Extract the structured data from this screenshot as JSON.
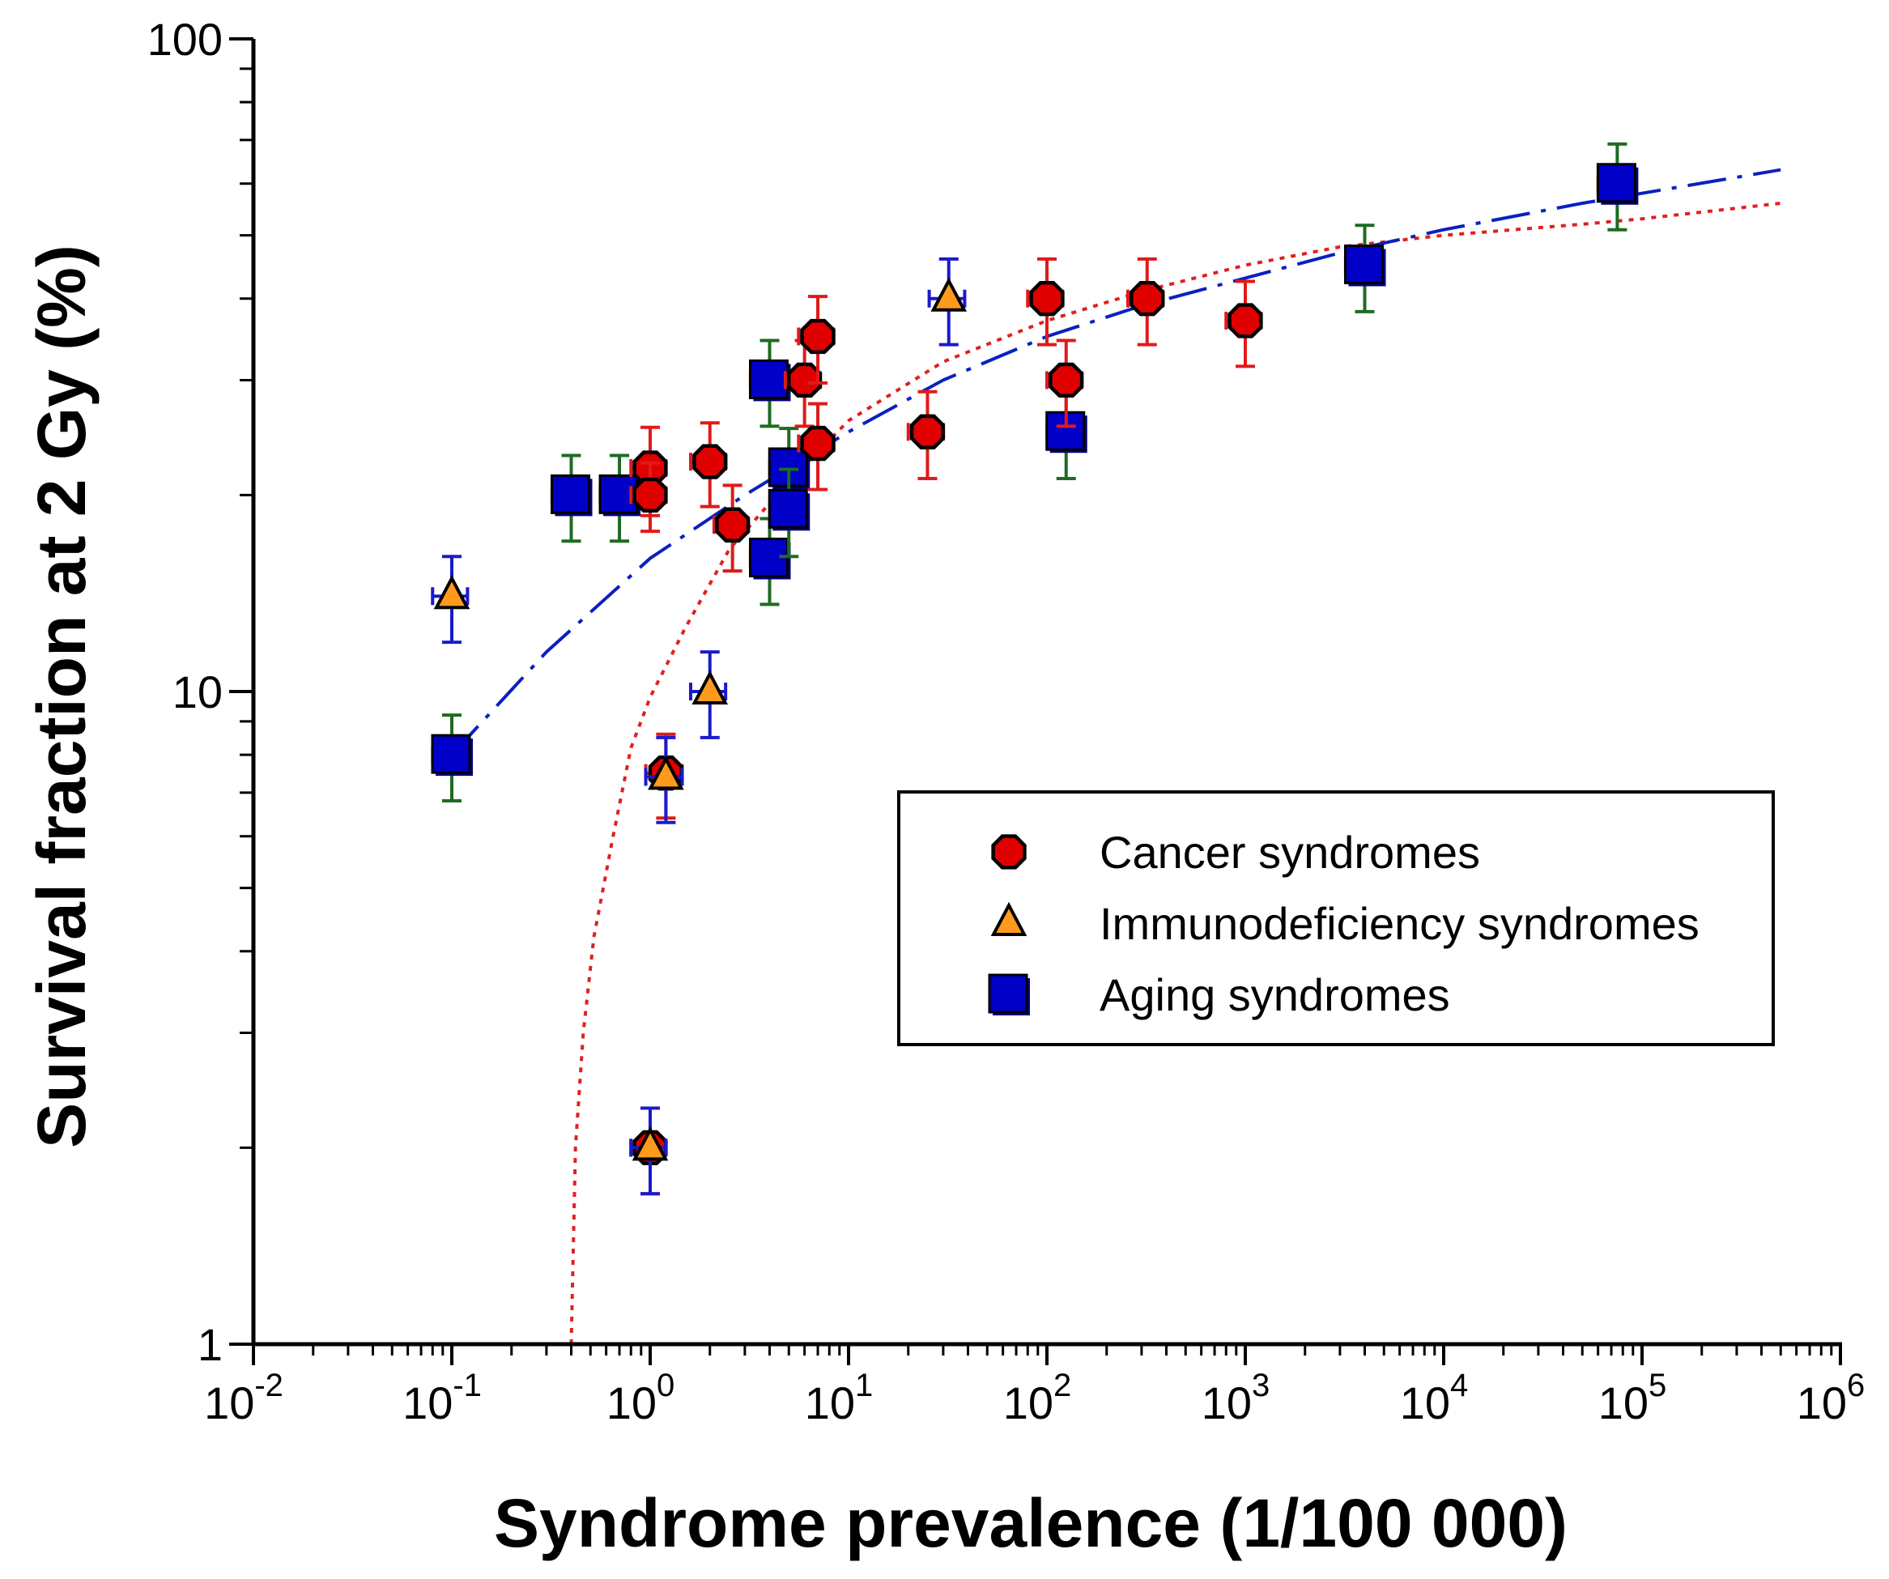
{
  "chart_data": {
    "type": "scatter",
    "title": "",
    "xlabel": "Syndrome prevalence (1/100 000)",
    "ylabel": "Survival fraction at 2 Gy (%)",
    "xscale": "log",
    "yscale": "log",
    "xlim": [
      0.01,
      1000000
    ],
    "ylim": [
      1,
      100
    ],
    "x_ticks": [
      {
        "value": 0.01,
        "base": "10",
        "exp": "-2"
      },
      {
        "value": 0.1,
        "base": "10",
        "exp": "-1"
      },
      {
        "value": 1,
        "base": "10",
        "exp": "0"
      },
      {
        "value": 10,
        "base": "10",
        "exp": "1"
      },
      {
        "value": 100,
        "base": "10",
        "exp": "2"
      },
      {
        "value": 1000,
        "base": "10",
        "exp": "3"
      },
      {
        "value": 10000,
        "base": "10",
        "exp": "4"
      },
      {
        "value": 100000,
        "base": "10",
        "exp": "5"
      },
      {
        "value": 1000000,
        "base": "10",
        "exp": "6"
      }
    ],
    "y_ticks": [
      {
        "value": 1,
        "label": "1"
      },
      {
        "value": 10,
        "label": "10"
      },
      {
        "value": 100,
        "label": "100"
      }
    ],
    "legend_position": "middle-right",
    "colors": {
      "cancer_fill": "#e00000",
      "immuno_fill": "#ff9a1f",
      "aging_fill": "#0000c8",
      "red_err": "#e01a1a",
      "green_err": "#1e6b22",
      "blue_err": "#1a1acc",
      "orange_err": "#ff8c1a",
      "red_fit": "#e02020",
      "blue_fit": "#0a20c0"
    },
    "series": [
      {
        "name": "Cancer syndromes",
        "marker": "octagon",
        "points": [
          {
            "x": 1.0,
            "y": 22,
            "xerr": 0.2,
            "yerr": 3.4
          },
          {
            "x": 1.0,
            "y": 20,
            "xerr": 0.2,
            "yerr": 2.4
          },
          {
            "x": 2.0,
            "y": 22.5,
            "xerr": 0.4,
            "yerr": 3.3
          },
          {
            "x": 2.6,
            "y": 18,
            "xerr": 0.5,
            "yerr": 2.7
          },
          {
            "x": 6.0,
            "y": 30,
            "xerr": 1.2,
            "yerr": 4.5
          },
          {
            "x": 7.0,
            "y": 35,
            "xerr": 1.4,
            "yerr": 5.3
          },
          {
            "x": 7.0,
            "y": 24,
            "xerr": 1.4,
            "yerr": 3.6
          },
          {
            "x": 25,
            "y": 25,
            "xerr": 5,
            "yerr": 3.8
          },
          {
            "x": 100,
            "y": 40,
            "xerr": 20,
            "yerr": 6
          },
          {
            "x": 125,
            "y": 30,
            "xerr": 25,
            "yerr": 4.5
          },
          {
            "x": 320,
            "y": 40,
            "xerr": 64,
            "yerr": 6
          },
          {
            "x": 1000,
            "y": 37,
            "xerr": 200,
            "yerr": 5.5
          },
          {
            "x": 1.0,
            "y": 2,
            "xerr": 0.2,
            "yerr": 0.3
          },
          {
            "x": 1.2,
            "y": 7.5,
            "xerr": 0.25,
            "yerr": 1.1
          }
        ]
      },
      {
        "name": "Immunodeficiency syndromes",
        "marker": "triangle",
        "points": [
          {
            "x": 0.1,
            "y": 14,
            "xerr": 0.02,
            "yerr": 2.1
          },
          {
            "x": 1.0,
            "y": 2,
            "xerr": 0.2,
            "yerr": 0.3
          },
          {
            "x": 1.2,
            "y": 7.4,
            "xerr": 0.25,
            "yerr": 1.1
          },
          {
            "x": 2.0,
            "y": 10,
            "xerr": 0.4,
            "yerr": 1.5
          },
          {
            "x": 32,
            "y": 40,
            "xerr": 6.5,
            "yerr": 6
          }
        ]
      },
      {
        "name": "Aging syndromes",
        "marker": "square",
        "points": [
          {
            "x": 0.1,
            "y": 8,
            "xerr": 0.02,
            "yerr": 1.2
          },
          {
            "x": 0.4,
            "y": 20,
            "xerr": 0.08,
            "yerr": 3
          },
          {
            "x": 0.7,
            "y": 20,
            "xerr": 0.14,
            "yerr": 3
          },
          {
            "x": 4.0,
            "y": 30,
            "xerr": 0.8,
            "yerr": 4.5
          },
          {
            "x": 4.0,
            "y": 16,
            "xerr": 0.8,
            "yerr": 2.4
          },
          {
            "x": 5.0,
            "y": 22,
            "xerr": 1.0,
            "yerr": 3.3
          },
          {
            "x": 5.0,
            "y": 19,
            "xerr": 1.0,
            "yerr": 2.9
          },
          {
            "x": 125,
            "y": 25,
            "xerr": 25,
            "yerr": 3.8
          },
          {
            "x": 4000,
            "y": 45,
            "xerr": 800,
            "yerr": 6.8
          },
          {
            "x": 75000,
            "y": 60,
            "xerr": 15000,
            "yerr": 9
          }
        ]
      }
    ],
    "fits": [
      {
        "name": "red-dotted-fit",
        "style": "dotted",
        "color": "#e02020",
        "points": [
          [
            0.4,
            1.0
          ],
          [
            0.42,
            2
          ],
          [
            0.46,
            3
          ],
          [
            0.52,
            4.2
          ],
          [
            0.65,
            6
          ],
          [
            0.8,
            8.2
          ],
          [
            1.0,
            9.8
          ],
          [
            1.5,
            12.5
          ],
          [
            2.5,
            16.5
          ],
          [
            5,
            21
          ],
          [
            10,
            26
          ],
          [
            30,
            32
          ],
          [
            100,
            37
          ],
          [
            300,
            41
          ],
          [
            1000,
            45
          ],
          [
            3000,
            48
          ],
          [
            10000,
            50
          ],
          [
            50000,
            52
          ],
          [
            100000,
            53
          ],
          [
            500000,
            56
          ]
        ]
      },
      {
        "name": "blue-dashed-fit",
        "style": "dashed",
        "color": "#0a20c0",
        "points": [
          [
            0.1,
            8
          ],
          [
            0.3,
            11.5
          ],
          [
            1.0,
            16
          ],
          [
            3.0,
            20
          ],
          [
            10,
            25
          ],
          [
            30,
            30
          ],
          [
            100,
            35
          ],
          [
            300,
            39
          ],
          [
            1000,
            43
          ],
          [
            3000,
            47
          ],
          [
            10000,
            51
          ],
          [
            50000,
            56
          ],
          [
            100000,
            58
          ],
          [
            500000,
            63
          ]
        ]
      }
    ]
  }
}
